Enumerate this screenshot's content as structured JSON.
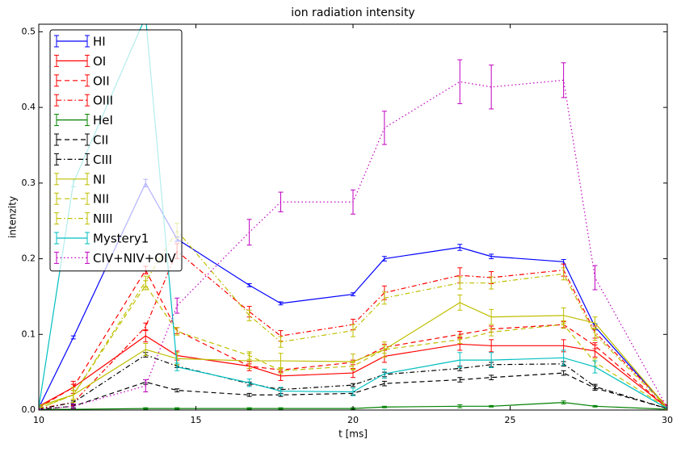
{
  "chart_data": {
    "type": "errorbar_line",
    "title": "ion radiation intensity",
    "x_label": "t [ms]",
    "y_label": "intenzity",
    "x": [
      10,
      11.1,
      13.4,
      14.4,
      16.7,
      17.7,
      20,
      21,
      23.4,
      24.4,
      26.7,
      27.7,
      30
    ],
    "xlim": [
      10,
      30
    ],
    "xticks": [
      10,
      15,
      20,
      25,
      30
    ],
    "ylim": [
      0,
      0.51
    ],
    "yticks": [
      {
        "value": 0,
        "label": "0.0"
      },
      0.1,
      0.2,
      0.3,
      0.4,
      0.5
    ],
    "legend": "upper left",
    "series": [
      {
        "name": "HI",
        "color": "#0000ff",
        "linestyle": "solid",
        "values": [
          0.003,
          0.096,
          0.3,
          0.226,
          0.165,
          0.141,
          0.153,
          0.2,
          0.215,
          0.203,
          0.196,
          0.11,
          0.003
        ],
        "errors": [
          0.002,
          0.002,
          0.005,
          0.003,
          0.002,
          0.002,
          0.002,
          0.003,
          0.004,
          0.003,
          0.003,
          0.004,
          0.002
        ]
      },
      {
        "name": "OI",
        "color": "#ff0000",
        "linestyle": "solid",
        "values": [
          0.005,
          0.03,
          0.098,
          0.072,
          0.058,
          0.045,
          0.049,
          0.071,
          0.087,
          0.085,
          0.085,
          0.078,
          0.003
        ],
        "errors": [
          0.002,
          0.008,
          0.008,
          0.006,
          0.006,
          0.006,
          0.006,
          0.008,
          0.008,
          0.008,
          0.008,
          0.008,
          0.002
        ]
      },
      {
        "name": "OII",
        "color": "#ff0000",
        "linestyle": "dashed",
        "values": [
          0.003,
          0.03,
          0.185,
          0.105,
          0.058,
          0.053,
          0.063,
          0.083,
          0.1,
          0.107,
          0.113,
          0.085,
          0.003
        ],
        "errors": [
          0.002,
          0.004,
          0.005,
          0.004,
          0.003,
          0.003,
          0.003,
          0.004,
          0.004,
          0.004,
          0.004,
          0.004,
          0.002
        ]
      },
      {
        "name": "OIII",
        "color": "#ff0000",
        "linestyle": "dashdot",
        "values": [
          0.002,
          0.01,
          0.11,
          0.21,
          0.13,
          0.098,
          0.113,
          0.155,
          0.178,
          0.175,
          0.185,
          0.103,
          0.005
        ],
        "errors": [
          0.002,
          0.004,
          0.005,
          0.01,
          0.007,
          0.007,
          0.007,
          0.009,
          0.01,
          0.008,
          0.008,
          0.008,
          0.002
        ]
      },
      {
        "name": "HeI",
        "color": "#008000",
        "linestyle": "solid",
        "values": [
          0.001,
          0.001,
          0.002,
          0.002,
          0.002,
          0.002,
          0.002,
          0.004,
          0.005,
          0.005,
          0.01,
          0.005,
          0.001
        ],
        "errors": [
          0.001,
          0.001,
          0.001,
          0.001,
          0.001,
          0.001,
          0.001,
          0.001,
          0.002,
          0.001,
          0.002,
          0.001,
          0.001
        ]
      },
      {
        "name": "CII",
        "color": "#000000",
        "linestyle": "dashed",
        "values": [
          0.001,
          0.005,
          0.037,
          0.026,
          0.02,
          0.02,
          0.022,
          0.035,
          0.04,
          0.043,
          0.049,
          0.029,
          0.002
        ],
        "errors": [
          0.001,
          0.002,
          0.003,
          0.002,
          0.002,
          0.002,
          0.002,
          0.003,
          0.003,
          0.003,
          0.003,
          0.003,
          0.001
        ]
      },
      {
        "name": "CIII",
        "color": "#000000",
        "linestyle": "dashdot",
        "values": [
          0.001,
          0.01,
          0.073,
          0.058,
          0.035,
          0.027,
          0.033,
          0.047,
          0.055,
          0.06,
          0.061,
          0.031,
          0.002
        ],
        "errors": [
          0.001,
          0.002,
          0.003,
          0.002,
          0.002,
          0.002,
          0.002,
          0.003,
          0.003,
          0.003,
          0.003,
          0.003,
          0.001
        ]
      },
      {
        "name": "NI",
        "color": "#bfbf00",
        "linestyle": "solid",
        "values": [
          0.005,
          0.02,
          0.08,
          0.068,
          0.065,
          0.065,
          0.064,
          0.08,
          0.142,
          0.123,
          0.125,
          0.115,
          0.003
        ],
        "errors": [
          0.002,
          0.01,
          0.008,
          0.008,
          0.01,
          0.01,
          0.01,
          0.01,
          0.01,
          0.01,
          0.01,
          0.008,
          0.002
        ]
      },
      {
        "name": "NII",
        "color": "#bfbf00",
        "linestyle": "dashed",
        "values": [
          0.002,
          0.02,
          0.165,
          0.104,
          0.072,
          0.052,
          0.058,
          0.08,
          0.093,
          0.103,
          0.113,
          0.063,
          0.003
        ],
        "errors": [
          0.002,
          0.006,
          0.006,
          0.005,
          0.005,
          0.004,
          0.005,
          0.005,
          0.005,
          0.005,
          0.005,
          0.005,
          0.002
        ]
      },
      {
        "name": "NIII",
        "color": "#bfbf00",
        "linestyle": "dashdot",
        "values": [
          0.002,
          0.02,
          0.17,
          0.237,
          0.125,
          0.09,
          0.105,
          0.148,
          0.168,
          0.168,
          0.18,
          0.1,
          0.003
        ],
        "errors": [
          0.002,
          0.006,
          0.007,
          0.01,
          0.007,
          0.007,
          0.008,
          0.008,
          0.008,
          0.008,
          0.008,
          0.008,
          0.002
        ]
      },
      {
        "name": "Mystery1",
        "color": "#00bfbf",
        "linestyle": "solid",
        "values": [
          0.003,
          0.3,
          0.52,
          0.057,
          0.036,
          0.025,
          0.024,
          0.048,
          0.066,
          0.066,
          0.069,
          0.057,
          0.002
        ],
        "errors": [
          0.002,
          0.005,
          0.01,
          0.005,
          0.005,
          0.005,
          0.005,
          0.006,
          0.01,
          0.01,
          0.01,
          0.008,
          0.002
        ]
      },
      {
        "name": "CIV+NIV+OIV",
        "color": "#bf00bf",
        "linestyle": "dotted",
        "values": [
          0.001,
          0.005,
          0.032,
          0.138,
          0.235,
          0.275,
          0.275,
          0.373,
          0.434,
          0.427,
          0.436,
          0.175,
          0.003
        ],
        "errors": [
          0.001,
          0.003,
          0.008,
          0.01,
          0.017,
          0.013,
          0.016,
          0.022,
          0.029,
          0.029,
          0.023,
          0.016,
          0.003
        ]
      }
    ]
  }
}
